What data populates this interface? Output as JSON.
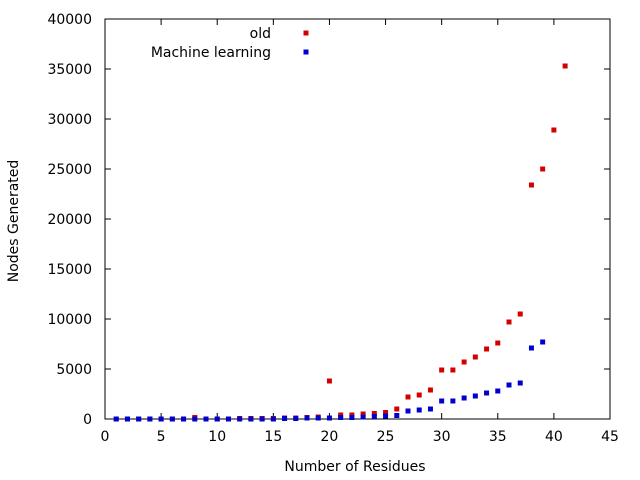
{
  "chart_data": {
    "type": "scatter",
    "title": "",
    "xlabel": "Number of Residues",
    "ylabel": "Nodes Generated",
    "xlim": [
      0,
      45
    ],
    "ylim": [
      0,
      40000
    ],
    "x_ticks": [
      0,
      5,
      10,
      15,
      20,
      25,
      30,
      35,
      40,
      45
    ],
    "y_ticks": [
      0,
      5000,
      10000,
      15000,
      20000,
      25000,
      30000,
      35000,
      40000
    ],
    "grid": false,
    "legend_position": "top",
    "series": [
      {
        "name": "old",
        "color": "#d40000",
        "points": [
          [
            1,
            0
          ],
          [
            2,
            0
          ],
          [
            3,
            0
          ],
          [
            4,
            0
          ],
          [
            5,
            0
          ],
          [
            6,
            0
          ],
          [
            7,
            0
          ],
          [
            8,
            150
          ],
          [
            9,
            0
          ],
          [
            10,
            0
          ],
          [
            11,
            0
          ],
          [
            12,
            50
          ],
          [
            13,
            50
          ],
          [
            14,
            50
          ],
          [
            15,
            50
          ],
          [
            16,
            100
          ],
          [
            17,
            100
          ],
          [
            18,
            150
          ],
          [
            19,
            200
          ],
          [
            20,
            3800
          ],
          [
            21,
            400
          ],
          [
            22,
            400
          ],
          [
            23,
            500
          ],
          [
            24,
            550
          ],
          [
            25,
            650
          ],
          [
            26,
            1000
          ],
          [
            27,
            2200
          ],
          [
            28,
            2400
          ],
          [
            29,
            2900
          ],
          [
            30,
            4900
          ],
          [
            31,
            4900
          ],
          [
            32,
            5700
          ],
          [
            33,
            6200
          ],
          [
            34,
            7000
          ],
          [
            35,
            7600
          ],
          [
            36,
            9700
          ],
          [
            37,
            10500
          ],
          [
            38,
            23400
          ],
          [
            39,
            25000
          ],
          [
            40,
            28900
          ],
          [
            41,
            35300
          ]
        ]
      },
      {
        "name": "Machine learning",
        "color": "#0000cc",
        "points": [
          [
            1,
            0
          ],
          [
            2,
            0
          ],
          [
            3,
            0
          ],
          [
            4,
            0
          ],
          [
            5,
            0
          ],
          [
            6,
            0
          ],
          [
            7,
            0
          ],
          [
            8,
            0
          ],
          [
            9,
            0
          ],
          [
            10,
            0
          ],
          [
            11,
            0
          ],
          [
            12,
            0
          ],
          [
            13,
            0
          ],
          [
            14,
            0
          ],
          [
            15,
            0
          ],
          [
            16,
            50
          ],
          [
            17,
            50
          ],
          [
            18,
            100
          ],
          [
            19,
            100
          ],
          [
            20,
            100
          ],
          [
            21,
            150
          ],
          [
            22,
            150
          ],
          [
            23,
            200
          ],
          [
            24,
            250
          ],
          [
            25,
            300
          ],
          [
            26,
            350
          ],
          [
            27,
            800
          ],
          [
            28,
            900
          ],
          [
            29,
            1000
          ],
          [
            30,
            1800
          ],
          [
            31,
            1800
          ],
          [
            32,
            2100
          ],
          [
            33,
            2300
          ],
          [
            34,
            2600
          ],
          [
            35,
            2800
          ],
          [
            36,
            3400
          ],
          [
            37,
            3600
          ],
          [
            38,
            7100
          ],
          [
            39,
            7700
          ]
        ]
      }
    ]
  }
}
